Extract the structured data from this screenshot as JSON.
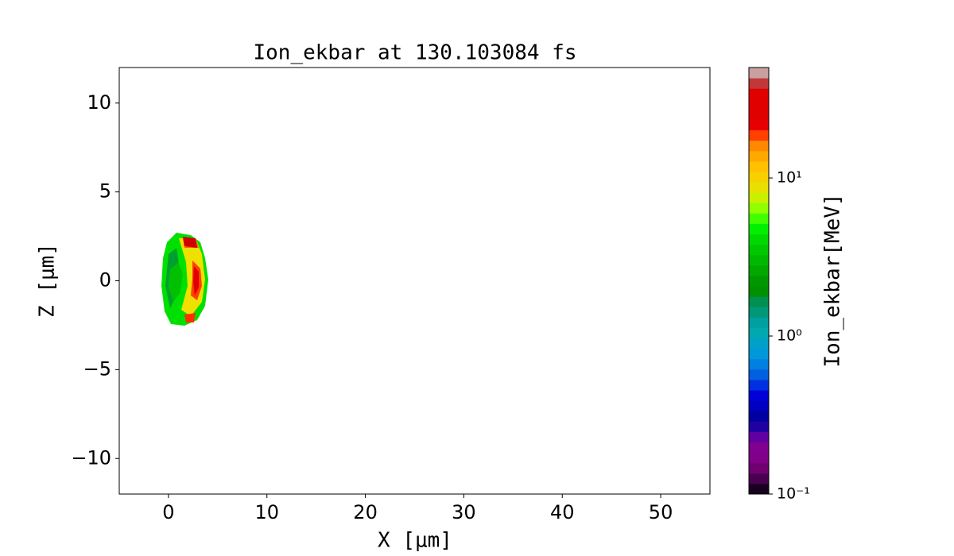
{
  "chart_data": {
    "type": "contour",
    "title": "Ion_ekbar at 130.103084 fs",
    "xlabel": "X [μm]",
    "ylabel": "Z [μm]",
    "xlim": [
      -5,
      55
    ],
    "xticks": [
      0,
      10,
      20,
      30,
      40,
      50
    ],
    "ylim": [
      -12,
      12
    ],
    "yticks": [
      {
        "value": -10,
        "label": "−10"
      },
      {
        "value": -5,
        "label": "−5"
      },
      0,
      5,
      10
    ],
    "colorbar": {
      "label": "Ion_ekbar[MeV]",
      "scale": "log",
      "lim": [
        0.1,
        50
      ],
      "ticks": [
        {
          "value": 0.1,
          "label": "10⁻¹"
        },
        {
          "value": 1,
          "label": "10⁰"
        },
        {
          "value": 10,
          "label": "10¹"
        }
      ],
      "colors": [
        "#1a0020",
        "#4a0050",
        "#700070",
        "#800088",
        "#800090",
        "#6000a0",
        "#2000a0",
        "#0000a0",
        "#0000c0",
        "#0000d8",
        "#0030e0",
        "#0060e0",
        "#0080e0",
        "#0098d8",
        "#00a0c8",
        "#00a8b0",
        "#00a0a0",
        "#009878",
        "#009050",
        "#009000",
        "#009800",
        "#00a800",
        "#00b800",
        "#00c800",
        "#00d800",
        "#00f000",
        "#40ff00",
        "#90ff00",
        "#c8f000",
        "#e8e000",
        "#f8d000",
        "#ffc000",
        "#ffa800",
        "#ff8800",
        "#ff4000",
        "#e80000",
        "#e00000",
        "#e00000",
        "#e00000",
        "#c03838",
        "#c8a0a0"
      ]
    }
  }
}
